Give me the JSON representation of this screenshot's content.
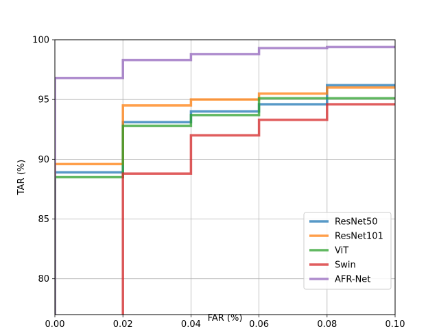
{
  "chart_data": {
    "type": "line",
    "step": "post",
    "xlabel": "FAR (%)",
    "ylabel": "TAR (%)",
    "xlim": [
      0.0,
      0.1
    ],
    "ylim": [
      77.0,
      100.0
    ],
    "xticks": [
      0.0,
      0.02,
      0.04,
      0.06,
      0.08,
      0.1
    ],
    "xtick_labels": [
      "0.00",
      "0.02",
      "0.04",
      "0.06",
      "0.08",
      "0.10"
    ],
    "yticks": [
      80,
      85,
      90,
      95,
      100
    ],
    "ytick_labels": [
      "80",
      "85",
      "90",
      "95",
      "100"
    ],
    "grid": true,
    "legend_position": "lower-right",
    "series": [
      {
        "name": "ResNet50",
        "color": "#1f77b4",
        "x": [
          0.0,
          0.0,
          0.02,
          0.04,
          0.06,
          0.08,
          0.1
        ],
        "y": [
          77.0,
          88.9,
          93.1,
          94.0,
          94.6,
          96.2,
          96.2
        ]
      },
      {
        "name": "ResNet101",
        "color": "#ff7f0e",
        "x": [
          0.0,
          0.0,
          0.02,
          0.04,
          0.06,
          0.08,
          0.1
        ],
        "y": [
          77.0,
          89.6,
          94.5,
          95.0,
          95.5,
          96.0,
          96.0
        ]
      },
      {
        "name": "ViT",
        "color": "#2ca02c",
        "x": [
          0.0,
          0.0,
          0.02,
          0.04,
          0.06,
          0.08,
          0.1
        ],
        "y": [
          77.0,
          88.5,
          92.8,
          93.7,
          95.1,
          95.1,
          95.1
        ]
      },
      {
        "name": "Swin",
        "color": "#d62728",
        "x": [
          0.02,
          0.02,
          0.04,
          0.06,
          0.08,
          0.1
        ],
        "y": [
          77.0,
          88.8,
          92.0,
          93.3,
          94.6,
          94.6
        ]
      },
      {
        "name": "AFR-Net",
        "color": "#9467bd",
        "x": [
          0.0,
          0.0,
          0.02,
          0.04,
          0.06,
          0.08,
          0.1
        ],
        "y": [
          77.0,
          96.8,
          98.3,
          98.8,
          99.3,
          99.4,
          99.4
        ]
      }
    ]
  }
}
